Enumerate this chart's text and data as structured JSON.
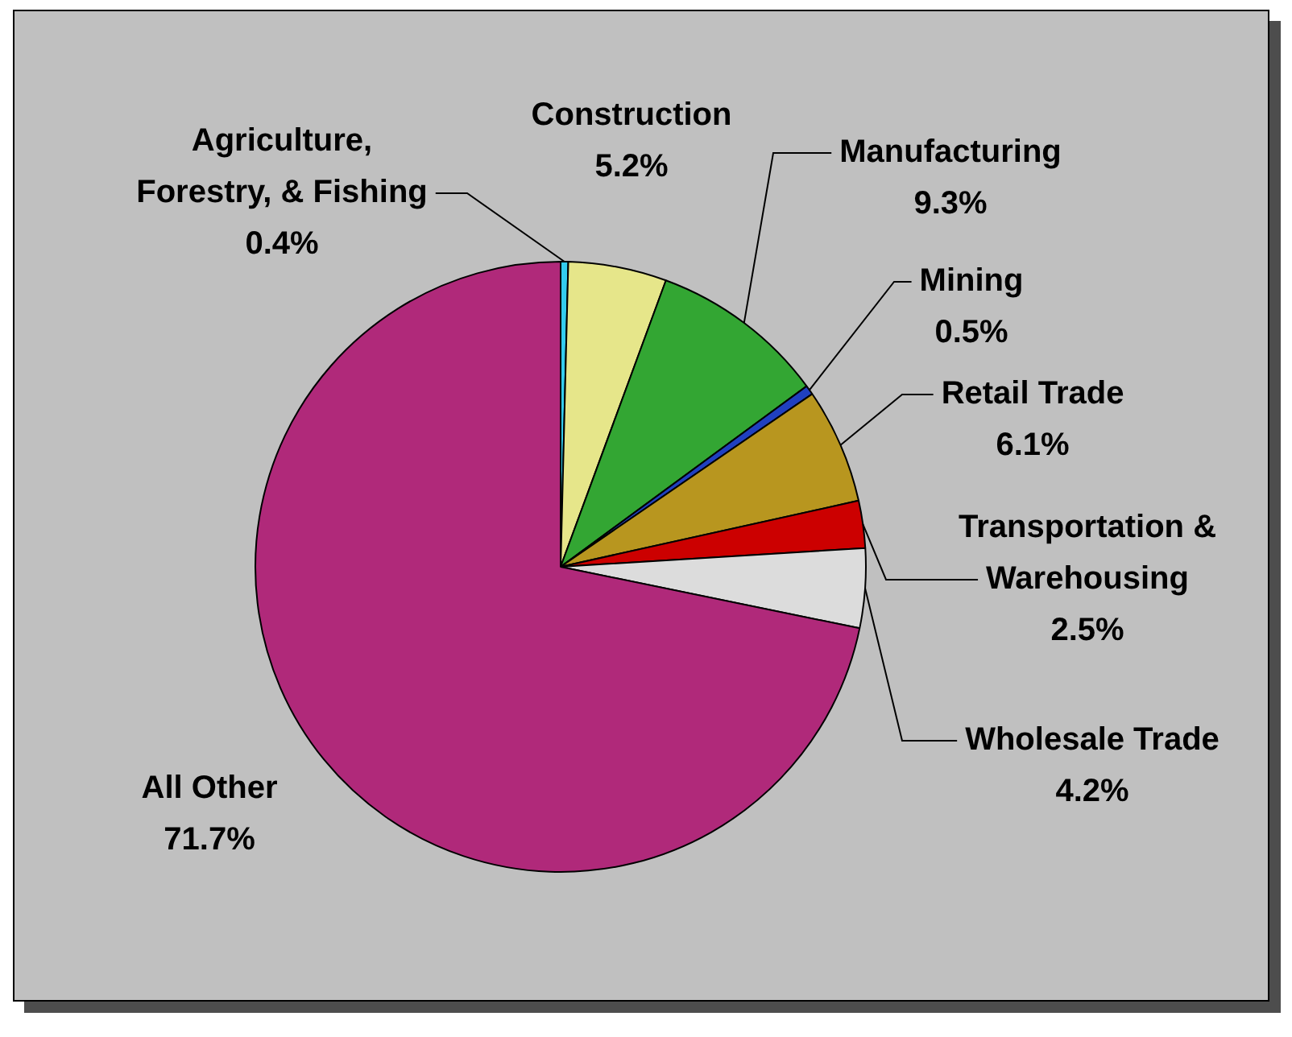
{
  "chart_data": {
    "type": "pie",
    "categories": [
      "Agriculture, Forestry, & Fishing",
      "Construction",
      "Manufacturing",
      "Mining",
      "Retail Trade",
      "Transportation & Warehousing",
      "Wholesale Trade",
      "All Other"
    ],
    "values": [
      0.4,
      5.2,
      9.3,
      0.5,
      6.1,
      2.5,
      4.2,
      71.7
    ],
    "value_labels": [
      "0.4%",
      "5.2%",
      "9.3%",
      "0.5%",
      "6.1%",
      "2.5%",
      "4.2%",
      "71.7%"
    ],
    "colors": [
      "#33ccee",
      "#e6e68a",
      "#33a633",
      "#2040c0",
      "#b8961f",
      "#cc0000",
      "#dcdcdc",
      "#b0297a"
    ]
  }
}
